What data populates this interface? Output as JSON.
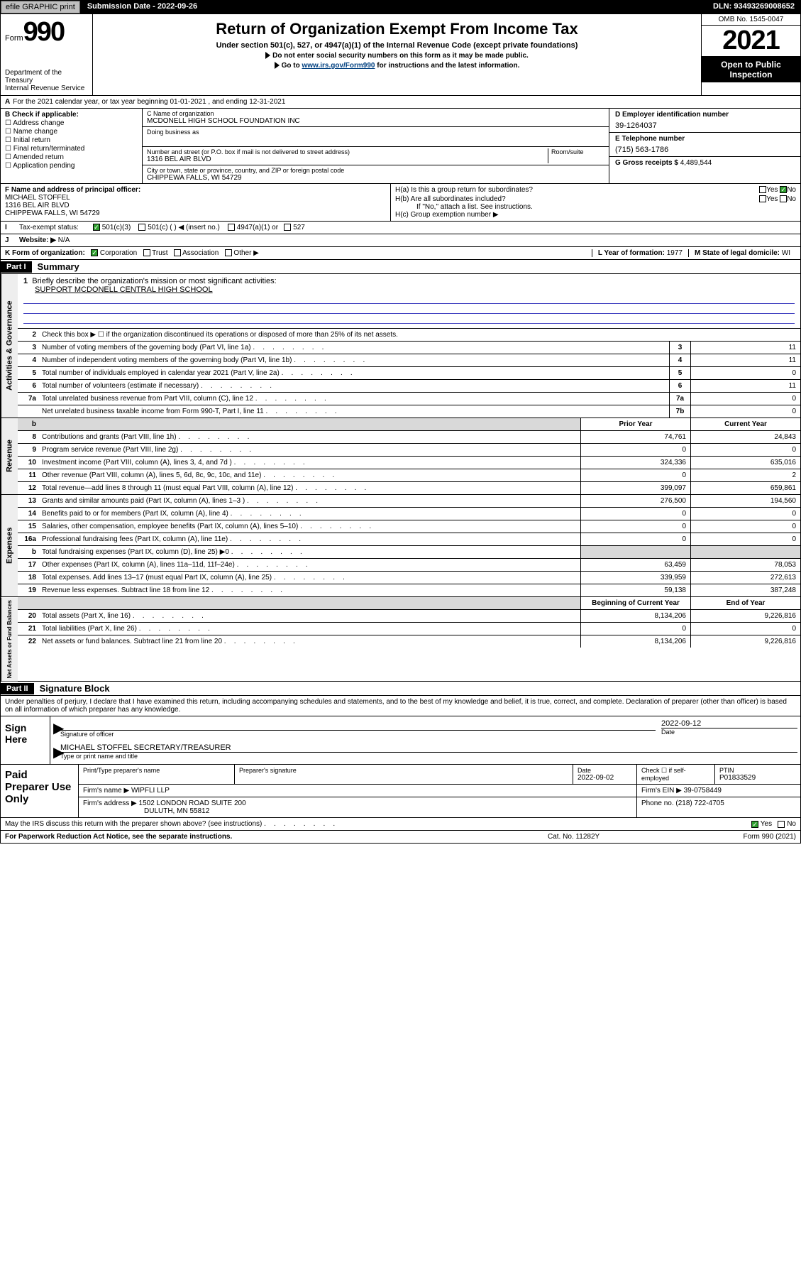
{
  "topbar": {
    "efile": "efile GRAPHIC print",
    "submission_label": "Submission Date - 2022-09-26",
    "dln": "DLN: 93493269008652"
  },
  "header": {
    "form_word": "Form",
    "form_number": "990",
    "title": "Return of Organization Exempt From Income Tax",
    "subtitle1": "Under section 501(c), 527, or 4947(a)(1) of the Internal Revenue Code (except private foundations)",
    "subtitle2": "Do not enter social security numbers on this form as it may be made public.",
    "subtitle3_prefix": "Go to ",
    "subtitle3_link": "www.irs.gov/Form990",
    "subtitle3_suffix": " for instructions and the latest information.",
    "dept": "Department of the Treasury",
    "irs": "Internal Revenue Service",
    "omb": "OMB No. 1545-0047",
    "year": "2021",
    "open": "Open to Public Inspection"
  },
  "rowA": "For the 2021 calendar year, or tax year beginning 01-01-2021    , and ending 12-31-2021",
  "boxB": {
    "label": "B Check if applicable:",
    "opts": [
      "Address change",
      "Name change",
      "Initial return",
      "Final return/terminated",
      "Amended return",
      "Application pending"
    ]
  },
  "boxC": {
    "name_label": "C Name of organization",
    "org_name": "MCDONELL HIGH SCHOOL FOUNDATION INC",
    "dba_label": "Doing business as",
    "addr_label": "Number and street (or P.O. box if mail is not delivered to street address)",
    "room_label": "Room/suite",
    "addr": "1316 BEL AIR BLVD",
    "city_label": "City or town, state or province, country, and ZIP or foreign postal code",
    "city": "CHIPPEWA FALLS, WI  54729"
  },
  "boxD": {
    "label": "D Employer identification number",
    "ein": "39-1264037"
  },
  "boxE": {
    "label": "E Telephone number",
    "phone": "(715) 563-1786"
  },
  "boxG": {
    "label": "G Gross receipts $",
    "val": "4,489,544"
  },
  "boxF": {
    "label": "F  Name and address of principal officer:",
    "name": "MICHAEL STOFFEL",
    "addr1": "1316 BEL AIR BLVD",
    "addr2": "CHIPPEWA FALLS, WI  54729"
  },
  "boxH": {
    "ha": "H(a)  Is this a group return for subordinates?",
    "hb": "H(b)  Are all subordinates included?",
    "hb_note": "If \"No,\" attach a list. See instructions.",
    "hc": "H(c)  Group exemption number ▶",
    "yes": "Yes",
    "no": "No"
  },
  "rowI": {
    "label": "Tax-exempt status:",
    "opts": [
      "501(c)(3)",
      "501(c) (   ) ◀ (insert no.)",
      "4947(a)(1) or",
      "527"
    ]
  },
  "rowJ": {
    "label": "Website: ▶",
    "val": "N/A"
  },
  "rowK": {
    "label": "K Form of organization:",
    "opts": [
      "Corporation",
      "Trust",
      "Association",
      "Other ▶"
    ],
    "l_label": "L Year of formation:",
    "l_val": "1977",
    "m_label": "M State of legal domicile:",
    "m_val": "WI"
  },
  "part1": {
    "head": "Part I",
    "title": "Summary",
    "l1_label": "Briefly describe the organization's mission or most significant activities:",
    "l1_text": "SUPPORT MCDONELL CENTRAL HIGH SCHOOL",
    "l2": "Check this box ▶ ☐  if the organization discontinued its operations or disposed of more than 25% of its net assets.",
    "vtab1": "Activities & Governance",
    "lines_gov": [
      {
        "n": "3",
        "d": "Number of voting members of the governing body (Part VI, line 1a)",
        "b": "3",
        "v": "11"
      },
      {
        "n": "4",
        "d": "Number of independent voting members of the governing body (Part VI, line 1b)",
        "b": "4",
        "v": "11"
      },
      {
        "n": "5",
        "d": "Total number of individuals employed in calendar year 2021 (Part V, line 2a)",
        "b": "5",
        "v": "0"
      },
      {
        "n": "6",
        "d": "Total number of volunteers (estimate if necessary)",
        "b": "6",
        "v": "11"
      },
      {
        "n": "7a",
        "d": "Total unrelated business revenue from Part VIII, column (C), line 12",
        "b": "7a",
        "v": "0"
      },
      {
        "n": "",
        "d": "Net unrelated business taxable income from Form 990-T, Part I, line 11",
        "b": "7b",
        "v": "0"
      }
    ],
    "prior_year": "Prior Year",
    "current_year": "Current Year",
    "vtab2": "Revenue",
    "lines_rev": [
      {
        "n": "8",
        "d": "Contributions and grants (Part VIII, line 1h)",
        "py": "74,761",
        "cy": "24,843"
      },
      {
        "n": "9",
        "d": "Program service revenue (Part VIII, line 2g)",
        "py": "0",
        "cy": "0"
      },
      {
        "n": "10",
        "d": "Investment income (Part VIII, column (A), lines 3, 4, and 7d )",
        "py": "324,336",
        "cy": "635,016"
      },
      {
        "n": "11",
        "d": "Other revenue (Part VIII, column (A), lines 5, 6d, 8c, 9c, 10c, and 11e)",
        "py": "0",
        "cy": "2"
      },
      {
        "n": "12",
        "d": "Total revenue—add lines 8 through 11 (must equal Part VIII, column (A), line 12)",
        "py": "399,097",
        "cy": "659,861"
      }
    ],
    "vtab3": "Expenses",
    "lines_exp": [
      {
        "n": "13",
        "d": "Grants and similar amounts paid (Part IX, column (A), lines 1–3 )",
        "py": "276,500",
        "cy": "194,560"
      },
      {
        "n": "14",
        "d": "Benefits paid to or for members (Part IX, column (A), line 4)",
        "py": "0",
        "cy": "0"
      },
      {
        "n": "15",
        "d": "Salaries, other compensation, employee benefits (Part IX, column (A), lines 5–10)",
        "py": "0",
        "cy": "0"
      },
      {
        "n": "16a",
        "d": "Professional fundraising fees (Part IX, column (A), line 11e)",
        "py": "0",
        "cy": "0"
      },
      {
        "n": "b",
        "d": "Total fundraising expenses (Part IX, column (D), line 25) ▶0",
        "py": "",
        "cy": "",
        "shade": true
      },
      {
        "n": "17",
        "d": "Other expenses (Part IX, column (A), lines 11a–11d, 11f–24e)",
        "py": "63,459",
        "cy": "78,053"
      },
      {
        "n": "18",
        "d": "Total expenses. Add lines 13–17 (must equal Part IX, column (A), line 25)",
        "py": "339,959",
        "cy": "272,613"
      },
      {
        "n": "19",
        "d": "Revenue less expenses. Subtract line 18 from line 12",
        "py": "59,138",
        "cy": "387,248"
      }
    ],
    "begin_year": "Beginning of Current Year",
    "end_year": "End of Year",
    "vtab4": "Net Assets or Fund Balances",
    "lines_net": [
      {
        "n": "20",
        "d": "Total assets (Part X, line 16)",
        "py": "8,134,206",
        "cy": "9,226,816"
      },
      {
        "n": "21",
        "d": "Total liabilities (Part X, line 26)",
        "py": "0",
        "cy": "0"
      },
      {
        "n": "22",
        "d": "Net assets or fund balances. Subtract line 21 from line 20",
        "py": "8,134,206",
        "cy": "9,226,816"
      }
    ]
  },
  "part2": {
    "head": "Part II",
    "title": "Signature Block",
    "decl": "Under penalties of perjury, I declare that I have examined this return, including accompanying schedules and statements, and to the best of my knowledge and belief, it is true, correct, and complete. Declaration of preparer (other than officer) is based on all information of which preparer has any knowledge.",
    "sign_here": "Sign Here",
    "sig_officer": "Signature of officer",
    "sig_date_label": "Date",
    "sig_date": "2022-09-12",
    "sig_name": "MICHAEL STOFFEL SECRETARY/TREASURER",
    "sig_name_label": "Type or print name and title",
    "prep_here": "Paid Preparer Use Only",
    "prep_name_label": "Print/Type preparer's name",
    "prep_sig_label": "Preparer's signature",
    "prep_date_label": "Date",
    "prep_date": "2022-09-02",
    "prep_check": "Check ☐ if self-employed",
    "ptin_label": "PTIN",
    "ptin": "P01833529",
    "firm_name_label": "Firm's name    ▶",
    "firm_name": "WIPFLI LLP",
    "firm_ein_label": "Firm's EIN ▶",
    "firm_ein": "39-0758449",
    "firm_addr_label": "Firm's address ▶",
    "firm_addr1": "1502 LONDON ROAD SUITE 200",
    "firm_addr2": "DULUTH, MN  55812",
    "firm_phone_label": "Phone no.",
    "firm_phone": "(218) 722-4705",
    "may_irs": "May the IRS discuss this return with the preparer shown above? (see instructions)"
  },
  "footer": {
    "l": "For Paperwork Reduction Act Notice, see the separate instructions.",
    "m": "Cat. No. 11282Y",
    "r": "Form 990 (2021)"
  },
  "colors": {
    "shade": "#d9d9d9",
    "black": "#000000",
    "link": "#004080",
    "green": "#30a030"
  }
}
